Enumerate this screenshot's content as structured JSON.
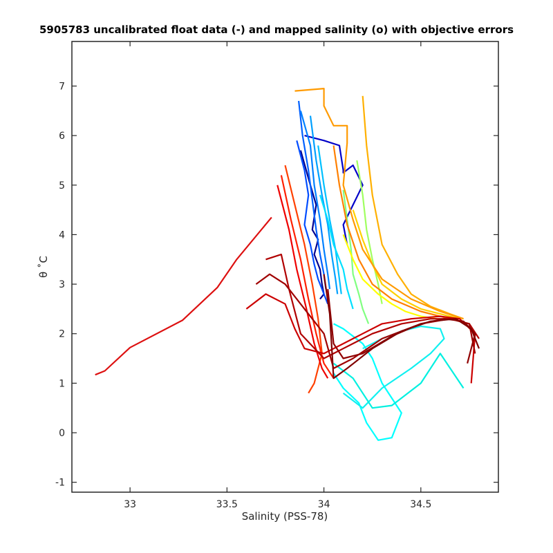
{
  "chart_data": {
    "type": "line",
    "title": "5905783 uncalibrated float data (-) and mapped salinity (o) with objective errors",
    "xlabel": "Salinity (PSS-78)",
    "ylabel": "θ ˚C",
    "xlim": [
      32.7,
      34.9
    ],
    "ylim": [
      -1.2,
      7.9
    ],
    "xticks": [
      33,
      33.5,
      34,
      34.5
    ],
    "xtick_labels": [
      "33",
      "33.5",
      "34",
      "34.5"
    ],
    "yticks": [
      -1,
      0,
      1,
      2,
      3,
      4,
      5,
      6,
      7
    ],
    "ytick_labels": [
      "-1",
      "0",
      "1",
      "2",
      "3",
      "4",
      "5",
      "6",
      "7"
    ],
    "grid": false,
    "series": [
      {
        "color": "#00008f",
        "x": [
          33.88,
          33.93,
          33.96,
          33.94,
          33.97,
          33.95,
          33.98,
          33.99,
          34.0,
          33.98
        ],
        "y": [
          5.7,
          5.0,
          4.6,
          4.1,
          3.9,
          3.6,
          3.3,
          3.0,
          2.8,
          2.7
        ]
      },
      {
        "color": "#0000c8",
        "x": [
          33.9,
          34.0,
          34.08,
          34.1,
          34.1,
          34.15,
          34.2,
          34.15,
          34.1,
          34.12
        ],
        "y": [
          6.0,
          5.9,
          5.8,
          5.3,
          5.25,
          5.4,
          5.0,
          4.6,
          4.2,
          3.8
        ]
      },
      {
        "color": "#004cff",
        "x": [
          33.86,
          33.9,
          33.92,
          33.9,
          33.93,
          33.95,
          33.97,
          34.0,
          34.02
        ],
        "y": [
          5.9,
          5.3,
          4.8,
          4.2,
          3.8,
          3.4,
          3.1,
          2.8,
          2.6
        ]
      },
      {
        "color": "#0060ff",
        "x": [
          33.87,
          33.89,
          33.92,
          33.94,
          33.96,
          33.98,
          34.0,
          34.01
        ],
        "y": [
          6.7,
          6.0,
          5.3,
          4.7,
          4.1,
          3.6,
          3.2,
          2.9
        ]
      },
      {
        "color": "#0080ff",
        "x": [
          33.88,
          33.93,
          33.95,
          33.98,
          34.0,
          34.02,
          34.03
        ],
        "y": [
          6.5,
          5.8,
          5.0,
          4.3,
          3.7,
          3.2,
          2.9
        ]
      },
      {
        "color": "#00a0ff",
        "x": [
          33.93,
          33.96,
          33.99,
          34.02,
          34.04,
          34.06,
          34.07
        ],
        "y": [
          6.4,
          5.5,
          4.8,
          4.2,
          3.6,
          3.1,
          2.8
        ]
      },
      {
        "color": "#00c0ff",
        "x": [
          33.97,
          34.0,
          34.03,
          34.06,
          34.08,
          34.09
        ],
        "y": [
          5.8,
          5.0,
          4.3,
          3.7,
          3.1,
          2.8
        ]
      },
      {
        "color": "#00e0ff",
        "x": [
          33.98,
          34.02,
          34.05,
          34.1,
          34.12,
          34.15
        ],
        "y": [
          4.8,
          4.3,
          3.8,
          3.3,
          2.9,
          2.5
        ]
      },
      {
        "color": "#00ffff",
        "x": [
          34.05,
          34.1,
          34.18,
          34.22,
          34.28,
          34.35,
          34.4,
          34.3,
          34.25,
          34.2,
          34.1,
          34.05
        ],
        "y": [
          1.2,
          0.9,
          0.6,
          0.2,
          -0.15,
          -0.1,
          0.4,
          1.0,
          1.5,
          1.8,
          2.1,
          2.2
        ]
      },
      {
        "color": "#10f0f0",
        "x": [
          34.1,
          34.2,
          34.3,
          34.45,
          34.55,
          34.62,
          34.6,
          34.5,
          34.4,
          34.3,
          34.2
        ],
        "y": [
          0.8,
          0.5,
          0.9,
          1.3,
          1.6,
          1.9,
          2.1,
          2.15,
          2.05,
          1.9,
          1.7
        ]
      },
      {
        "color": "#00f0e0",
        "x": [
          34.05,
          34.15,
          34.25,
          34.35,
          34.5,
          34.6,
          34.72
        ],
        "y": [
          1.4,
          1.1,
          0.5,
          0.55,
          1.0,
          1.6,
          0.9
        ]
      },
      {
        "color": "#80ff80",
        "x": [
          34.1,
          34.12,
          34.14,
          34.15,
          34.18,
          34.2,
          34.23
        ],
        "y": [
          4.9,
          4.3,
          3.7,
          3.2,
          2.8,
          2.5,
          2.2
        ]
      },
      {
        "color": "#a0ff60",
        "x": [
          34.17,
          34.2,
          34.22,
          34.25,
          34.28,
          34.3
        ],
        "y": [
          5.5,
          4.8,
          4.1,
          3.5,
          3.0,
          2.6
        ]
      },
      {
        "color": "#ffff00",
        "x": [
          34.1,
          34.15,
          34.2,
          34.28,
          34.35,
          34.42,
          34.5,
          34.58
        ],
        "y": [
          4.0,
          3.5,
          3.1,
          2.8,
          2.6,
          2.45,
          2.35,
          2.3
        ]
      },
      {
        "color": "#ffd000",
        "x": [
          34.15,
          34.2,
          34.25,
          34.3,
          34.4,
          34.5,
          34.6,
          34.7
        ],
        "y": [
          4.5,
          3.9,
          3.4,
          3.0,
          2.7,
          2.5,
          2.4,
          2.3
        ]
      },
      {
        "color": "#ffb000",
        "x": [
          34.2,
          34.22,
          34.25,
          34.3,
          34.38,
          34.45,
          34.55,
          34.65,
          34.72
        ],
        "y": [
          6.8,
          5.8,
          4.8,
          3.8,
          3.2,
          2.8,
          2.55,
          2.4,
          2.3
        ]
      },
      {
        "color": "#ff9a00",
        "x": [
          33.85,
          34.0,
          34.0,
          34.05,
          34.12,
          34.12,
          34.1,
          34.15,
          34.2,
          34.3,
          34.45,
          34.6,
          34.72
        ],
        "y": [
          6.9,
          6.95,
          6.6,
          6.2,
          6.2,
          5.85,
          5.0,
          4.3,
          3.7,
          3.1,
          2.7,
          2.45,
          2.3
        ]
      },
      {
        "color": "#ff8000",
        "x": [
          34.05,
          34.08,
          34.12,
          34.18,
          34.25,
          34.35,
          34.5,
          34.65,
          34.75
        ],
        "y": [
          5.8,
          5.0,
          4.2,
          3.5,
          3.0,
          2.7,
          2.45,
          2.3,
          2.2
        ]
      },
      {
        "color": "#ff4000",
        "x": [
          33.8,
          33.85,
          33.9,
          33.94,
          33.97,
          33.99,
          33.95,
          33.92
        ],
        "y": [
          5.4,
          4.6,
          3.8,
          3.0,
          2.3,
          1.6,
          1.0,
          0.8
        ]
      },
      {
        "color": "#ff2000",
        "x": [
          33.78,
          33.83,
          33.88,
          33.92,
          33.96,
          34.0,
          34.05
        ],
        "y": [
          5.2,
          4.3,
          3.5,
          2.7,
          2.0,
          1.4,
          1.1
        ]
      },
      {
        "color": "#ee0000",
        "x": [
          33.76,
          33.82,
          33.86,
          33.91,
          33.95,
          33.99,
          34.02
        ],
        "y": [
          5.0,
          4.1,
          3.3,
          2.5,
          1.8,
          1.3,
          1.1
        ]
      },
      {
        "color": "#dd1010",
        "x": [
          32.82,
          32.87,
          33.0,
          33.27,
          33.45,
          33.55,
          33.73
        ],
        "y": [
          1.17,
          1.25,
          1.72,
          2.27,
          2.93,
          3.5,
          4.35
        ]
      },
      {
        "color": "#cc0000",
        "x": [
          33.6,
          33.7,
          33.8,
          33.85,
          33.9,
          34.0,
          34.1,
          34.2,
          34.3,
          34.45,
          34.6,
          34.7,
          34.78,
          34.76
        ],
        "y": [
          2.5,
          2.8,
          2.6,
          2.1,
          1.7,
          1.6,
          1.8,
          2.0,
          2.2,
          2.3,
          2.35,
          2.3,
          2.0,
          1.0
        ]
      },
      {
        "color": "#b00000",
        "x": [
          33.7,
          33.78,
          33.82,
          33.88,
          34.0,
          34.1,
          34.25,
          34.4,
          34.55,
          34.65,
          34.75,
          34.8
        ],
        "y": [
          3.5,
          3.6,
          2.9,
          2.0,
          1.5,
          1.7,
          2.0,
          2.2,
          2.3,
          2.3,
          2.2,
          1.9
        ]
      },
      {
        "color": "#a00000",
        "x": [
          33.65,
          33.72,
          33.8,
          33.9,
          34.0,
          34.05,
          34.15,
          34.3,
          34.5,
          34.65,
          34.75,
          34.78
        ],
        "y": [
          3.0,
          3.2,
          3.0,
          2.5,
          2.0,
          1.3,
          1.5,
          1.9,
          2.2,
          2.3,
          2.2,
          1.6
        ]
      },
      {
        "color": "#900000",
        "x": [
          34.02,
          34.05,
          34.1,
          34.2,
          34.35,
          34.5,
          34.62,
          34.72,
          34.78,
          34.74
        ],
        "y": [
          2.9,
          1.8,
          1.5,
          1.6,
          1.95,
          2.2,
          2.3,
          2.25,
          2.0,
          1.4
        ]
      },
      {
        "color": "#800000",
        "x": [
          34.0,
          34.03,
          34.05,
          34.12,
          34.25,
          34.4,
          34.55,
          34.68,
          34.76,
          34.8
        ],
        "y": [
          3.2,
          2.4,
          1.1,
          1.3,
          1.7,
          2.05,
          2.25,
          2.3,
          2.1,
          1.7
        ]
      }
    ]
  }
}
